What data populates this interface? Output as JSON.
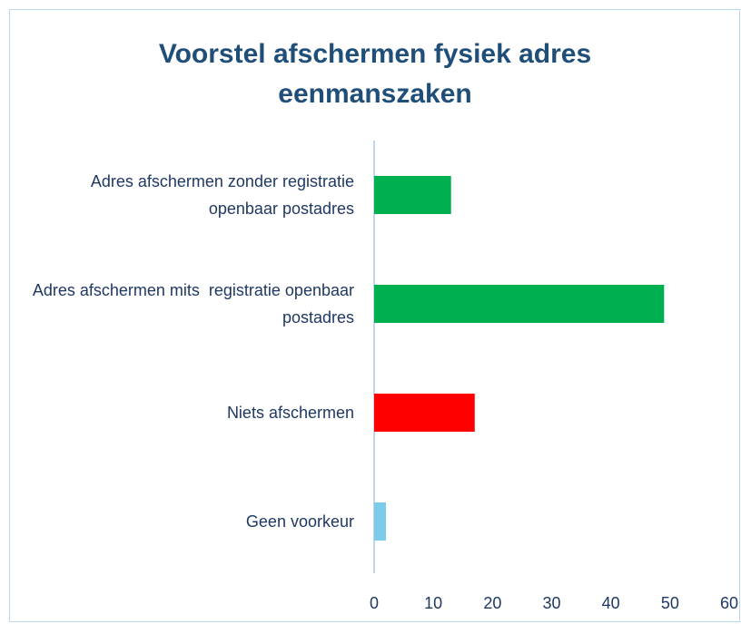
{
  "chart_data": {
    "type": "bar",
    "orientation": "horizontal",
    "title": "Voorstel afschermen fysiek adres eenmanszaken",
    "categories": [
      "Adres afschermen zonder registratie openbaar postadres",
      "Adres afschermen mits  registratie openbaar postadres",
      "Niets afschermen",
      "Geen voorkeur"
    ],
    "values": [
      13,
      49,
      17,
      2
    ],
    "colors": [
      "#00b050",
      "#00b050",
      "#ff0000",
      "#7ccbeb"
    ],
    "xlim": [
      0,
      60
    ],
    "xticks": [
      0,
      10,
      20,
      30,
      40,
      50,
      60
    ],
    "grid": false
  }
}
